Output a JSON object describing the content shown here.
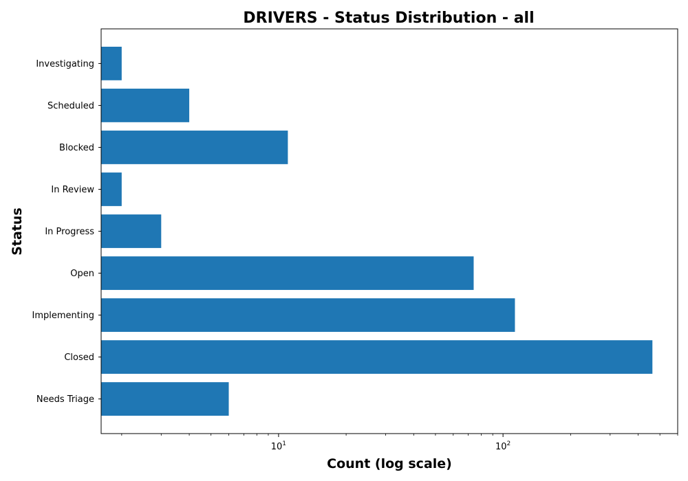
{
  "chart_data": {
    "type": "bar",
    "orientation": "horizontal",
    "title": "DRIVERS - Status Distribution - all",
    "xlabel": "Count (log scale)",
    "ylabel": "Status",
    "x_scale": "log",
    "xlim": [
      1.62,
      600
    ],
    "x_ticks": [
      {
        "value": 10,
        "base": "10",
        "exp": "1"
      },
      {
        "value": 100,
        "base": "10",
        "exp": "2"
      }
    ],
    "categories": [
      "Needs Triage",
      "Closed",
      "Implementing",
      "Open",
      "In Progress",
      "In Review",
      "Blocked",
      "Scheduled",
      "Investigating"
    ],
    "values": [
      6,
      463,
      113,
      74,
      3,
      2,
      11,
      4,
      2
    ],
    "bar_color": "#1f77b4",
    "grid": false
  }
}
